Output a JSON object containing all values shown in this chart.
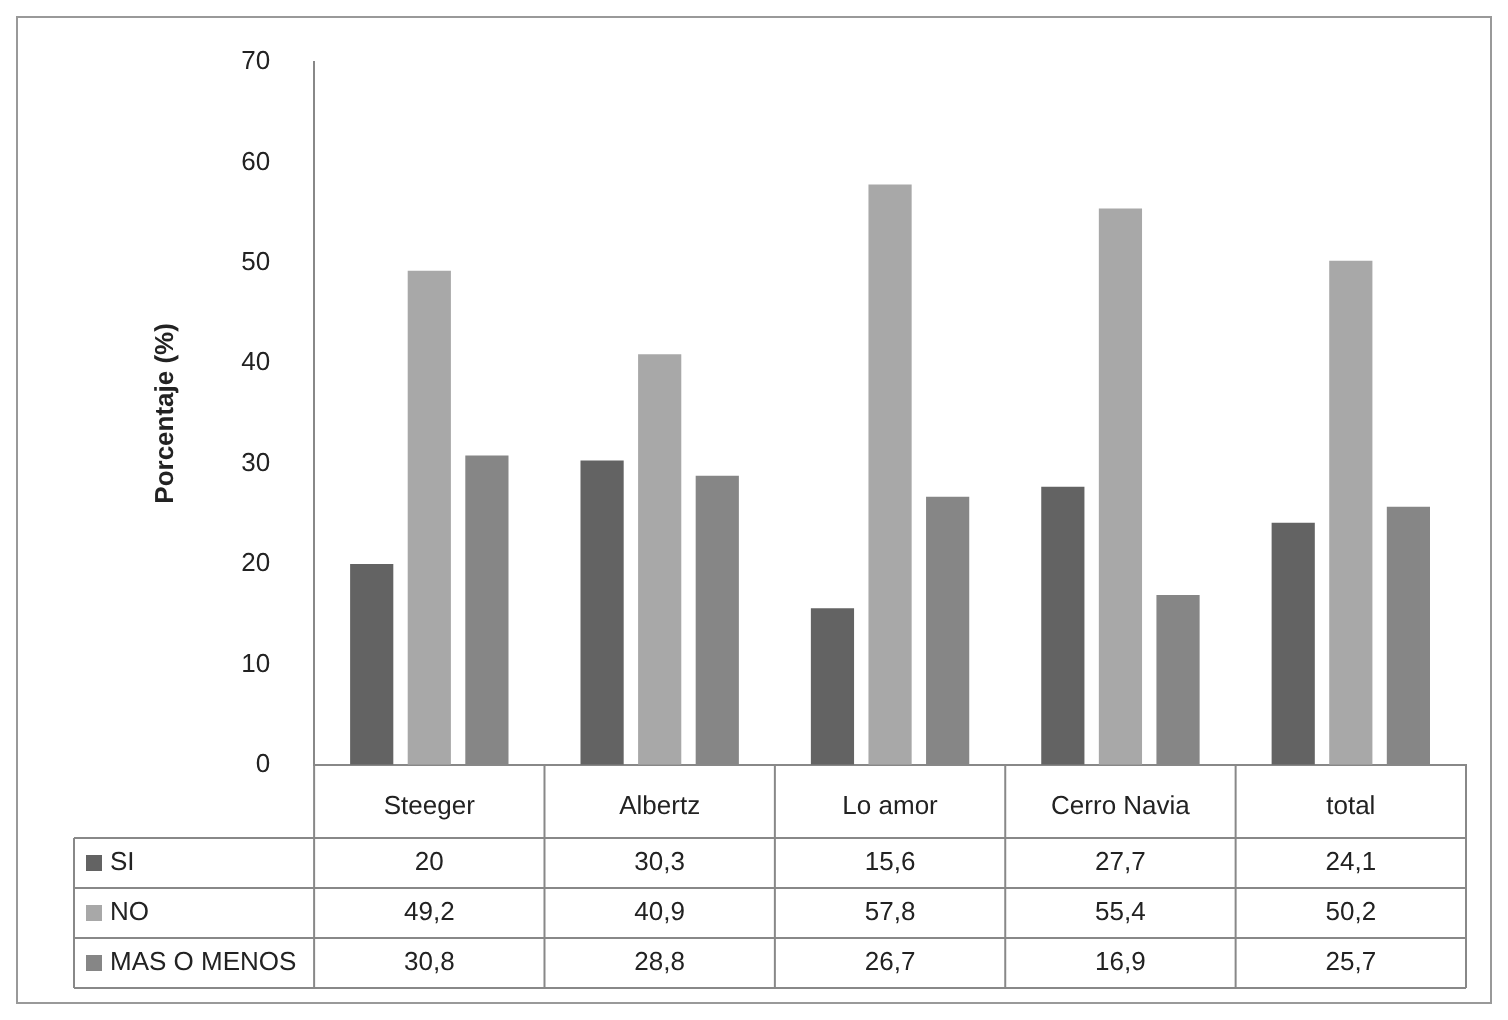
{
  "chart_data": {
    "type": "bar",
    "ylabel": "Porcentaje (%)",
    "categories": [
      "Steeger",
      "Albertz",
      "Lo amor",
      "Cerro Navia",
      "total"
    ],
    "series": [
      {
        "name": "SI",
        "color": "#636363",
        "values": [
          20,
          30.3,
          15.6,
          27.7,
          24.1
        ],
        "value_labels": [
          "20",
          "30,3",
          "15,6",
          "27,7",
          "24,1"
        ]
      },
      {
        "name": "NO",
        "color": "#a8a8a8",
        "values": [
          49.2,
          40.9,
          57.8,
          55.4,
          50.2
        ],
        "value_labels": [
          "49,2",
          "40,9",
          "57,8",
          "55,4",
          "50,2"
        ]
      },
      {
        "name": "MAS O MENOS",
        "color": "#868686",
        "values": [
          30.8,
          28.8,
          26.7,
          16.9,
          25.7
        ],
        "value_labels": [
          "30,8",
          "28,8",
          "26,7",
          "16,9",
          "25,7"
        ]
      }
    ],
    "ylim": [
      0,
      70
    ],
    "yticks": [
      0,
      10,
      20,
      30,
      40,
      50,
      60,
      70
    ],
    "grid": false,
    "legend": "bottom"
  }
}
